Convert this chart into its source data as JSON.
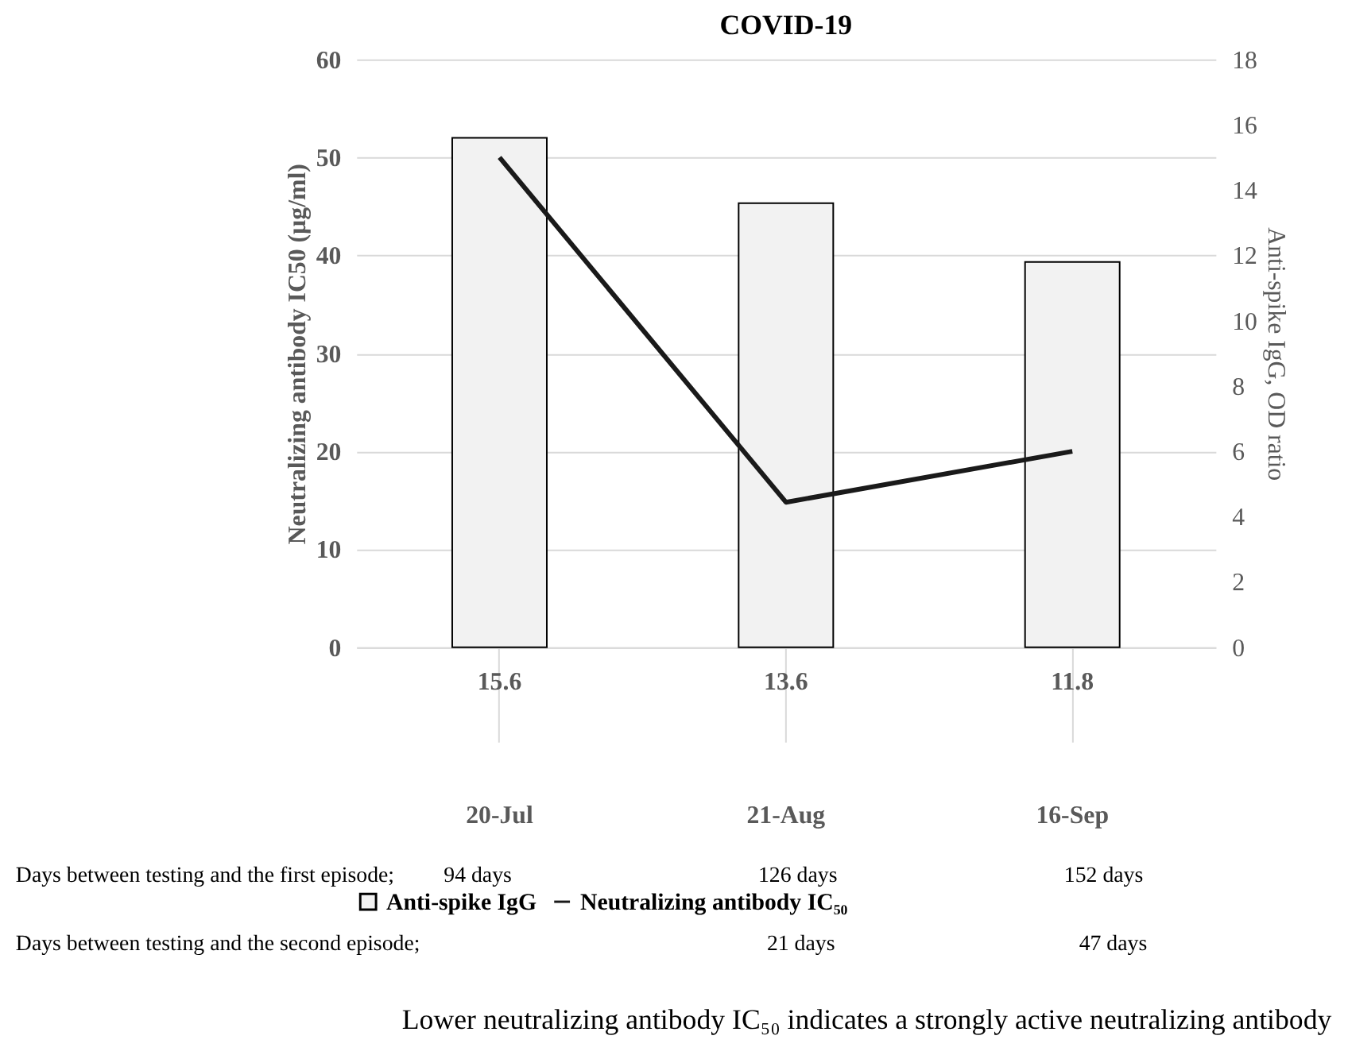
{
  "chart_data": {
    "type": "bar",
    "title": "COVID-19",
    "categories": [
      "20-Jul",
      "21-Aug",
      "16-Sep"
    ],
    "series": [
      {
        "name": "Anti-spike IgG",
        "axis": "y2",
        "color": "#f2f2f2",
        "values": [
          15.6,
          13.6,
          11.8
        ],
        "value_labels": [
          "15.6",
          "13.6",
          "11.8"
        ]
      },
      {
        "name": "Neutralizing antibody IC₅₀",
        "type": "line",
        "color": "#1a1a1a",
        "values": [
          50,
          14.8,
          20
        ]
      }
    ],
    "ylabel": "Neutralizing  antibody IC50 (µg/ml)",
    "y2label": "Anti-spike IgG, OD ratio",
    "ylim": [
      0,
      60
    ],
    "yticks": [
      0,
      10,
      20,
      30,
      40,
      50,
      60
    ],
    "y2lim": [
      0,
      18
    ],
    "y2ticks": [
      0,
      2,
      4,
      6,
      8,
      10,
      12,
      14,
      16,
      18
    ],
    "grid": "y",
    "legend": "bottom",
    "annotations": [
      "Days between testing and the first episode;",
      "94 days",
      "126 days",
      "152 days",
      "Days between testing and the second episode;",
      "21 days",
      "47 days",
      "Lower neutralizing antibody IC₅₀ indicates a strongly active neutralizing antibody"
    ]
  }
}
